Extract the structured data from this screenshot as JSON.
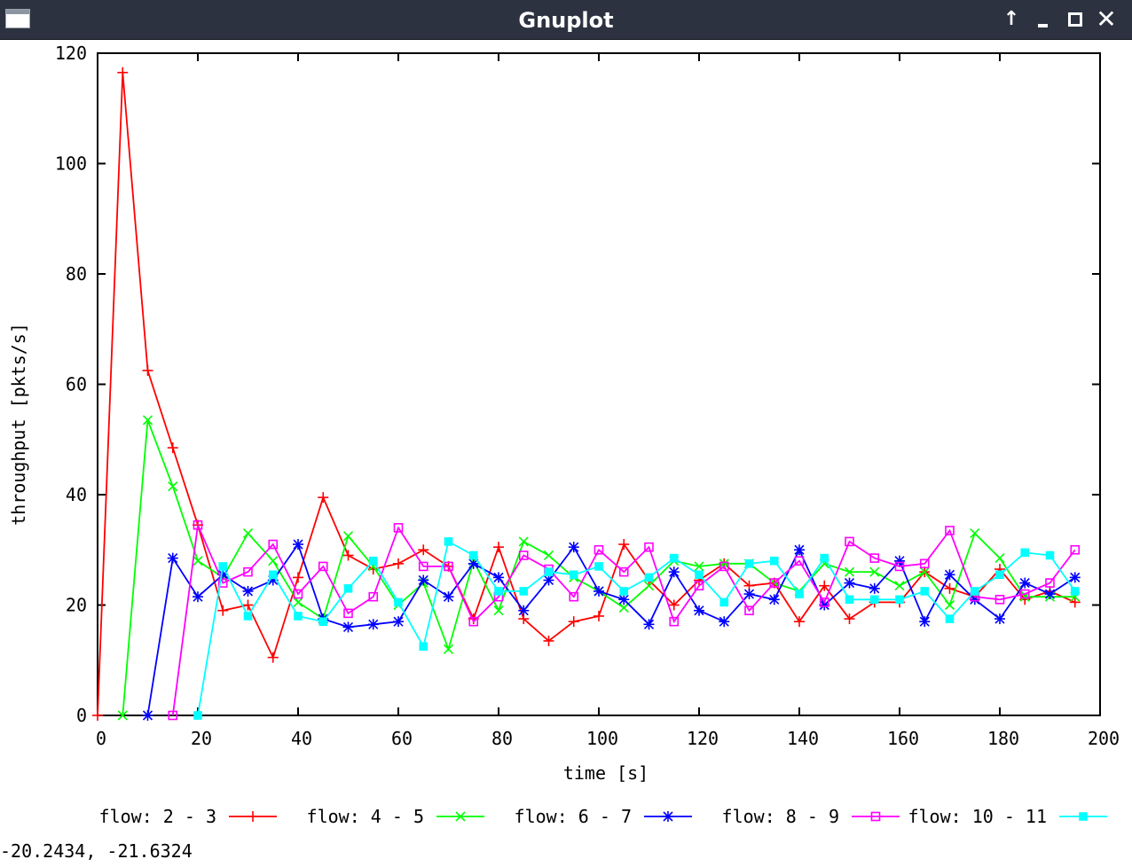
{
  "window": {
    "title": "Gnuplot",
    "buttons": [
      "up-arrow-icon",
      "minimize-icon",
      "maximize-icon",
      "close-icon"
    ],
    "title_bg": "#2c3240"
  },
  "status": {
    "text": "-20.2434, -21.6324"
  },
  "chart_data": {
    "type": "line",
    "title": "",
    "xlabel": "time [s]",
    "ylabel": "throughput [pkts/s]",
    "xlim": [
      0,
      200
    ],
    "ylim": [
      0,
      120
    ],
    "xticks": [
      0,
      20,
      40,
      60,
      80,
      100,
      120,
      140,
      160,
      180,
      200
    ],
    "yticks": [
      0,
      20,
      40,
      60,
      80,
      100,
      120
    ],
    "grid": false,
    "legend": "bottom",
    "series": [
      {
        "name": "flow: 2 - 3",
        "color": "#ff0000",
        "marker": "plus",
        "x": [
          0,
          5,
          10,
          15,
          20,
          25,
          30,
          35,
          40,
          45,
          50,
          55,
          60,
          65,
          70,
          75,
          80,
          85,
          90,
          95,
          100,
          105,
          110,
          115,
          120,
          125,
          130,
          135,
          140,
          145,
          150,
          155,
          160,
          165,
          170,
          175,
          180,
          185,
          190,
          195
        ],
        "y": [
          0,
          116.5,
          62.5,
          48.5,
          34.5,
          19,
          20,
          10.5,
          25,
          39.5,
          29,
          26.5,
          27.5,
          30,
          27,
          17.5,
          30.5,
          17.5,
          13.5,
          17,
          18,
          31,
          24.5,
          20,
          24.5,
          27.5,
          23.5,
          24,
          17,
          23.5,
          17.5,
          20.5,
          20.5,
          26,
          23,
          21.5,
          26.5,
          21,
          22.5,
          20.5
        ]
      },
      {
        "name": "flow: 4 - 5",
        "color": "#00ff00",
        "marker": "cross",
        "x": [
          5,
          10,
          15,
          20,
          25,
          30,
          35,
          40,
          45,
          50,
          55,
          60,
          65,
          70,
          75,
          80,
          85,
          90,
          95,
          100,
          105,
          110,
          115,
          120,
          125,
          130,
          135,
          140,
          145,
          150,
          155,
          160,
          165,
          170,
          175,
          180,
          185,
          190,
          195
        ],
        "y": [
          0,
          53.5,
          41.5,
          28,
          25,
          33,
          28,
          20.5,
          17.5,
          32.5,
          27,
          20,
          24,
          12,
          28,
          19,
          31.5,
          29,
          25,
          22.5,
          19.5,
          23.5,
          28,
          27,
          27.5,
          27.5,
          24,
          22.5,
          27.5,
          26,
          26,
          23.5,
          26,
          20,
          33,
          28.5,
          21.5,
          21.5,
          21.5
        ]
      },
      {
        "name": "flow: 6 - 7",
        "color": "#0000ff",
        "marker": "star",
        "x": [
          10,
          15,
          20,
          25,
          30,
          35,
          40,
          45,
          50,
          55,
          60,
          65,
          70,
          75,
          80,
          85,
          90,
          95,
          100,
          105,
          110,
          115,
          120,
          125,
          130,
          135,
          140,
          145,
          150,
          155,
          160,
          165,
          170,
          175,
          180,
          185,
          190,
          195
        ],
        "y": [
          0,
          28.5,
          21.5,
          25.5,
          22.5,
          24.5,
          31,
          17.5,
          16,
          16.5,
          17,
          24.5,
          21.5,
          27.5,
          25,
          19,
          24.5,
          30.5,
          22.5,
          21,
          16.5,
          26,
          19,
          17,
          22,
          21,
          30,
          20,
          24,
          23,
          28,
          17,
          25.5,
          21,
          17.5,
          24,
          22,
          25
        ]
      },
      {
        "name": "flow: 8 - 9",
        "color": "#ff00ff",
        "marker": "open-square",
        "x": [
          15,
          20,
          25,
          30,
          35,
          40,
          45,
          50,
          55,
          60,
          65,
          70,
          75,
          80,
          85,
          90,
          95,
          100,
          105,
          110,
          115,
          120,
          125,
          130,
          135,
          140,
          145,
          150,
          155,
          160,
          165,
          170,
          175,
          180,
          185,
          190,
          195
        ],
        "y": [
          0,
          34.5,
          24,
          26,
          31,
          22,
          27,
          18.5,
          21.5,
          34,
          27,
          27,
          17,
          21.5,
          29,
          26.5,
          21.5,
          30,
          26,
          30.5,
          17,
          23.5,
          27,
          19,
          24,
          28,
          20.5,
          31.5,
          28.5,
          27,
          27.5,
          33.5,
          21.5,
          21,
          22,
          24,
          30
        ]
      },
      {
        "name": "flow: 10 - 11",
        "color": "#00ffff",
        "marker": "filled-square",
        "x": [
          20,
          25,
          30,
          35,
          40,
          45,
          50,
          55,
          60,
          65,
          70,
          75,
          80,
          85,
          90,
          95,
          100,
          105,
          110,
          115,
          120,
          125,
          130,
          135,
          140,
          145,
          150,
          155,
          160,
          165,
          170,
          175,
          180,
          185,
          190,
          195
        ],
        "y": [
          0,
          27,
          18,
          25.5,
          18,
          17,
          23,
          28,
          20.5,
          12.5,
          31.5,
          29,
          22.5,
          22.5,
          26,
          25.5,
          27,
          22.5,
          25,
          28.5,
          25.5,
          20.5,
          27.5,
          28,
          22,
          28.5,
          21,
          21,
          21,
          22.5,
          17.5,
          22.5,
          25.5,
          29.5,
          29,
          22.5
        ]
      }
    ]
  }
}
